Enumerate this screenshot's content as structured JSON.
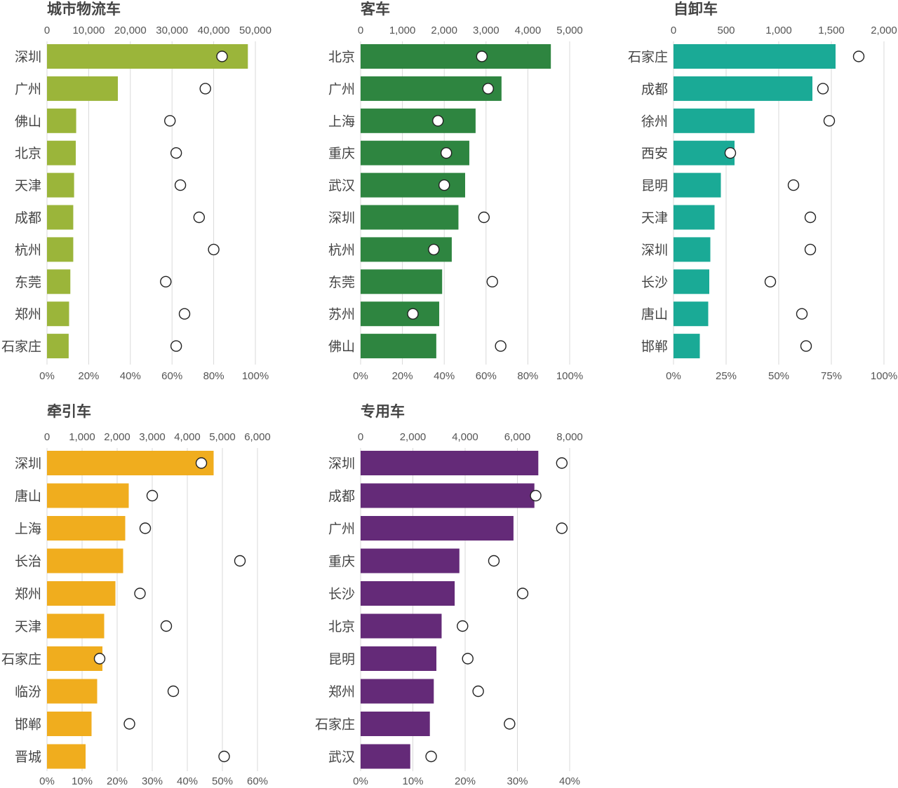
{
  "chart_data": [
    {
      "type": "bar",
      "title": "城市物流车",
      "color": "#9bb53a",
      "categories": [
        "深圳",
        "广州",
        "佛山",
        "北京",
        "天津",
        "成都",
        "杭州",
        "东莞",
        "郑州",
        "石家庄"
      ],
      "values": [
        48200,
        17000,
        7000,
        6900,
        6500,
        6300,
        6300,
        5600,
        5300,
        5200
      ],
      "xlim_top": [
        0,
        50000
      ],
      "ticks_top": [
        0,
        10000,
        20000,
        30000,
        40000,
        50000
      ],
      "tick_labels_top": [
        "0",
        "10,000",
        "20,000",
        "30,000",
        "40,000",
        "50,000"
      ],
      "ratio_percent": [
        84,
        76,
        59,
        62,
        64,
        73,
        80,
        57,
        66,
        62
      ],
      "xlim_bottom": [
        0,
        100
      ],
      "ticks_bottom": [
        0,
        20,
        40,
        60,
        80,
        100
      ],
      "tick_labels_bottom": [
        "0%",
        "20%",
        "40%",
        "60%",
        "80%",
        "100%"
      ]
    },
    {
      "type": "bar",
      "title": "客车",
      "color": "#2e8540",
      "categories": [
        "北京",
        "广州",
        "上海",
        "重庆",
        "武汉",
        "深圳",
        "杭州",
        "东莞",
        "苏州",
        "佛山"
      ],
      "values": [
        4550,
        3370,
        2750,
        2600,
        2500,
        2340,
        2180,
        1950,
        1880,
        1810
      ],
      "xlim_top": [
        0,
        5000
      ],
      "ticks_top": [
        0,
        1000,
        2000,
        3000,
        4000,
        5000
      ],
      "tick_labels_top": [
        "0",
        "1,000",
        "2,000",
        "3,000",
        "4,000",
        "5,000"
      ],
      "ratio_percent": [
        58,
        61,
        37,
        41,
        40,
        59,
        35,
        63,
        25,
        67
      ],
      "xlim_bottom": [
        0,
        100
      ],
      "ticks_bottom": [
        0,
        20,
        40,
        60,
        80,
        100
      ],
      "tick_labels_bottom": [
        "0%",
        "20%",
        "40%",
        "60%",
        "80%",
        "100%"
      ]
    },
    {
      "type": "bar",
      "title": "自卸车",
      "color": "#1aaa96",
      "categories": [
        "石家庄",
        "成都",
        "徐州",
        "西安",
        "昆明",
        "天津",
        "深圳",
        "长沙",
        "唐山",
        "邯郸"
      ],
      "values": [
        1540,
        1320,
        770,
        580,
        450,
        390,
        350,
        340,
        330,
        250
      ],
      "xlim_top": [
        0,
        2000
      ],
      "ticks_top": [
        0,
        500,
        1000,
        1500,
        2000
      ],
      "tick_labels_top": [
        "0",
        "500",
        "1,000",
        "1,500",
        "2,000"
      ],
      "ratio_percent": [
        88,
        71,
        74,
        27,
        57,
        65,
        65,
        46,
        61,
        63
      ],
      "xlim_bottom": [
        0,
        100
      ],
      "ticks_bottom": [
        0,
        25,
        50,
        75,
        100
      ],
      "tick_labels_bottom": [
        "0%",
        "25%",
        "50%",
        "75%",
        "100%"
      ]
    },
    {
      "type": "bar",
      "title": "牵引车",
      "color": "#f0ad1e",
      "categories": [
        "深圳",
        "唐山",
        "上海",
        "长治",
        "郑州",
        "天津",
        "石家庄",
        "临汾",
        "邯郸",
        "晋城"
      ],
      "values": [
        4750,
        2330,
        2230,
        2170,
        1950,
        1630,
        1580,
        1430,
        1270,
        1100
      ],
      "xlim_top": [
        0,
        6000
      ],
      "ticks_top": [
        0,
        1000,
        2000,
        3000,
        4000,
        5000,
        6000
      ],
      "tick_labels_top": [
        "0",
        "1,000",
        "2,000",
        "3,000",
        "4,000",
        "5,000",
        "6,000"
      ],
      "ratio_percent": [
        44,
        30,
        28,
        55,
        26.5,
        34,
        15,
        36,
        23.5,
        50.5
      ],
      "xlim_bottom": [
        0,
        60
      ],
      "ticks_bottom": [
        0,
        10,
        20,
        30,
        40,
        50,
        60
      ],
      "tick_labels_bottom": [
        "0%",
        "10%",
        "20%",
        "30%",
        "40%",
        "50%",
        "60%"
      ]
    },
    {
      "type": "bar",
      "title": "专用车",
      "color": "#642a78",
      "categories": [
        "深圳",
        "成都",
        "广州",
        "重庆",
        "长沙",
        "北京",
        "昆明",
        "郑州",
        "石家庄",
        "武汉"
      ],
      "values": [
        6800,
        6650,
        5850,
        3780,
        3600,
        3100,
        2900,
        2800,
        2650,
        1900
      ],
      "xlim_top": [
        0,
        8000
      ],
      "ticks_top": [
        0,
        2000,
        4000,
        6000,
        8000
      ],
      "tick_labels_top": [
        "0",
        "2,000",
        "4,000",
        "6,000",
        "8,000"
      ],
      "ratio_percent": [
        38.5,
        33.5,
        38.5,
        25.5,
        31,
        19.5,
        20.5,
        22.5,
        28.5,
        13.5
      ],
      "xlim_bottom": [
        0,
        40
      ],
      "ticks_bottom": [
        0,
        10,
        20,
        30,
        40
      ],
      "tick_labels_bottom": [
        "0%",
        "10%",
        "20%",
        "30%",
        "40%"
      ]
    }
  ]
}
